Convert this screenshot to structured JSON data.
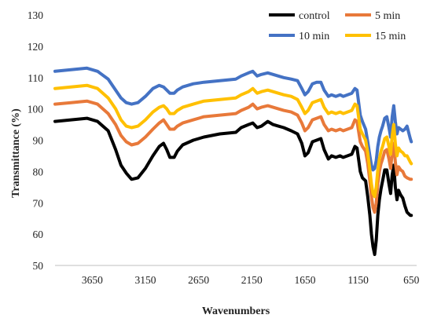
{
  "chart_data": {
    "type": "line",
    "title": "",
    "xlabel": "Wavenumbers",
    "ylabel": "Transmittance  (%)",
    "xlim": [
      4000,
      600
    ],
    "x_reversed": true,
    "ylim": [
      50,
      130
    ],
    "grid": false,
    "legend_position": "top-right",
    "x_ticks": [
      3650,
      3150,
      2650,
      2150,
      1650,
      1150,
      650
    ],
    "x_tick_labels": [
      "3650",
      "3150",
      "2650",
      "2150",
      "1650",
      "1150",
      "650"
    ],
    "y_ticks": [
      50,
      60,
      70,
      80,
      90,
      100,
      110,
      120,
      130
    ],
    "y_tick_labels": [
      "50",
      "60",
      "70",
      "80",
      "90",
      "100",
      "110",
      "120",
      "130"
    ],
    "series": [
      {
        "name": "control",
        "color": "#000000",
        "points": [
          [
            4000,
            96
          ],
          [
            3850,
            96.5
          ],
          [
            3700,
            97
          ],
          [
            3600,
            96
          ],
          [
            3500,
            93
          ],
          [
            3430,
            87
          ],
          [
            3380,
            82
          ],
          [
            3330,
            79.5
          ],
          [
            3280,
            77.5
          ],
          [
            3220,
            78
          ],
          [
            3150,
            81
          ],
          [
            3080,
            85
          ],
          [
            3020,
            88
          ],
          [
            2980,
            89
          ],
          [
            2950,
            87
          ],
          [
            2920,
            84.5
          ],
          [
            2880,
            84.5
          ],
          [
            2850,
            86.5
          ],
          [
            2800,
            88.5
          ],
          [
            2700,
            90
          ],
          [
            2600,
            91
          ],
          [
            2450,
            92
          ],
          [
            2300,
            92.5
          ],
          [
            2250,
            94
          ],
          [
            2180,
            95
          ],
          [
            2140,
            95.5
          ],
          [
            2100,
            94
          ],
          [
            2060,
            94.5
          ],
          [
            2000,
            96
          ],
          [
            1950,
            95
          ],
          [
            1900,
            94.5
          ],
          [
            1850,
            94
          ],
          [
            1780,
            93
          ],
          [
            1720,
            92
          ],
          [
            1680,
            89
          ],
          [
            1650,
            85
          ],
          [
            1620,
            86
          ],
          [
            1580,
            89.5
          ],
          [
            1540,
            90
          ],
          [
            1500,
            90.5
          ],
          [
            1470,
            87
          ],
          [
            1430,
            84
          ],
          [
            1400,
            85
          ],
          [
            1360,
            84.5
          ],
          [
            1320,
            85
          ],
          [
            1290,
            84.5
          ],
          [
            1250,
            85
          ],
          [
            1210,
            85.5
          ],
          [
            1180,
            88
          ],
          [
            1160,
            87.5
          ],
          [
            1130,
            80
          ],
          [
            1110,
            78
          ],
          [
            1080,
            77
          ],
          [
            1060,
            72
          ],
          [
            1040,
            66
          ],
          [
            1025,
            60
          ],
          [
            1010,
            56
          ],
          [
            995,
            53.5
          ],
          [
            980,
            58
          ],
          [
            965,
            66
          ],
          [
            950,
            71
          ],
          [
            935,
            74.5
          ],
          [
            920,
            77
          ],
          [
            900,
            80.5
          ],
          [
            880,
            80.5
          ],
          [
            860,
            76
          ],
          [
            845,
            73
          ],
          [
            830,
            79
          ],
          [
            815,
            82
          ],
          [
            800,
            75
          ],
          [
            785,
            71
          ],
          [
            770,
            74
          ],
          [
            750,
            72.5
          ],
          [
            730,
            71.5
          ],
          [
            710,
            69
          ],
          [
            690,
            67
          ],
          [
            660,
            66
          ],
          [
            650,
            66
          ]
        ]
      },
      {
        "name": "5 min",
        "color": "#E8793A",
        "points": [
          [
            4000,
            101.5
          ],
          [
            3850,
            102
          ],
          [
            3700,
            102.5
          ],
          [
            3600,
            101.5
          ],
          [
            3500,
            98.5
          ],
          [
            3430,
            95
          ],
          [
            3380,
            91.5
          ],
          [
            3330,
            89.5
          ],
          [
            3280,
            88.5
          ],
          [
            3220,
            89
          ],
          [
            3150,
            91
          ],
          [
            3080,
            93.5
          ],
          [
            3020,
            95.5
          ],
          [
            2980,
            96.5
          ],
          [
            2950,
            95
          ],
          [
            2920,
            93.5
          ],
          [
            2880,
            93.5
          ],
          [
            2850,
            94.5
          ],
          [
            2800,
            95.5
          ],
          [
            2700,
            96.5
          ],
          [
            2600,
            97.5
          ],
          [
            2450,
            98
          ],
          [
            2300,
            98.5
          ],
          [
            2250,
            99.5
          ],
          [
            2180,
            100.5
          ],
          [
            2140,
            101.5
          ],
          [
            2100,
            100
          ],
          [
            2060,
            100.5
          ],
          [
            2000,
            101
          ],
          [
            1950,
            100.5
          ],
          [
            1900,
            100
          ],
          [
            1850,
            99.5
          ],
          [
            1780,
            99
          ],
          [
            1720,
            98
          ],
          [
            1680,
            95.5
          ],
          [
            1650,
            93
          ],
          [
            1620,
            94
          ],
          [
            1580,
            96.5
          ],
          [
            1540,
            97
          ],
          [
            1500,
            97.5
          ],
          [
            1470,
            95
          ],
          [
            1430,
            93
          ],
          [
            1400,
            93.5
          ],
          [
            1360,
            93
          ],
          [
            1320,
            93.5
          ],
          [
            1290,
            93
          ],
          [
            1250,
            93.5
          ],
          [
            1210,
            94
          ],
          [
            1180,
            96.5
          ],
          [
            1160,
            96
          ],
          [
            1130,
            89.5
          ],
          [
            1110,
            88
          ],
          [
            1080,
            86.5
          ],
          [
            1060,
            82.5
          ],
          [
            1040,
            77
          ],
          [
            1025,
            72
          ],
          [
            1010,
            68.5
          ],
          [
            995,
            67
          ],
          [
            980,
            70
          ],
          [
            965,
            76
          ],
          [
            950,
            80
          ],
          [
            935,
            82.5
          ],
          [
            920,
            84
          ],
          [
            900,
            86.5
          ],
          [
            880,
            87
          ],
          [
            860,
            84
          ],
          [
            845,
            81
          ],
          [
            830,
            86
          ],
          [
            815,
            89
          ],
          [
            800,
            83
          ],
          [
            785,
            79
          ],
          [
            770,
            81.5
          ],
          [
            750,
            80.5
          ],
          [
            730,
            80
          ],
          [
            710,
            78.5
          ],
          [
            690,
            78
          ],
          [
            660,
            77.5
          ],
          [
            650,
            77.5
          ]
        ]
      },
      {
        "name": "10 min",
        "color": "#4472C4",
        "points": [
          [
            4000,
            112
          ],
          [
            3850,
            112.5
          ],
          [
            3700,
            113
          ],
          [
            3600,
            112
          ],
          [
            3500,
            109.5
          ],
          [
            3430,
            106
          ],
          [
            3380,
            103.5
          ],
          [
            3330,
            102
          ],
          [
            3280,
            101.5
          ],
          [
            3220,
            102
          ],
          [
            3150,
            104
          ],
          [
            3080,
            106.5
          ],
          [
            3020,
            107.5
          ],
          [
            2980,
            107
          ],
          [
            2950,
            106
          ],
          [
            2920,
            105
          ],
          [
            2880,
            105
          ],
          [
            2850,
            106
          ],
          [
            2800,
            107
          ],
          [
            2700,
            108
          ],
          [
            2600,
            108.5
          ],
          [
            2450,
            109
          ],
          [
            2300,
            109.5
          ],
          [
            2250,
            110.5
          ],
          [
            2180,
            111.5
          ],
          [
            2140,
            112
          ],
          [
            2100,
            110.5
          ],
          [
            2060,
            111
          ],
          [
            2000,
            111.5
          ],
          [
            1950,
            111
          ],
          [
            1900,
            110.5
          ],
          [
            1850,
            110
          ],
          [
            1780,
            109.5
          ],
          [
            1720,
            109
          ],
          [
            1680,
            106.5
          ],
          [
            1650,
            104.5
          ],
          [
            1620,
            105.5
          ],
          [
            1580,
            108
          ],
          [
            1540,
            108.5
          ],
          [
            1500,
            108.5
          ],
          [
            1470,
            106
          ],
          [
            1430,
            104
          ],
          [
            1400,
            104.5
          ],
          [
            1360,
            104
          ],
          [
            1320,
            104.5
          ],
          [
            1290,
            104
          ],
          [
            1250,
            104.5
          ],
          [
            1210,
            105
          ],
          [
            1180,
            106.5
          ],
          [
            1160,
            106
          ],
          [
            1130,
            98
          ],
          [
            1110,
            96
          ],
          [
            1080,
            93.5
          ],
          [
            1060,
            89.5
          ],
          [
            1040,
            85
          ],
          [
            1025,
            82
          ],
          [
            1010,
            80.5
          ],
          [
            995,
            81
          ],
          [
            980,
            83.5
          ],
          [
            965,
            88
          ],
          [
            950,
            91
          ],
          [
            935,
            93
          ],
          [
            920,
            94.5
          ],
          [
            900,
            97
          ],
          [
            880,
            97.5
          ],
          [
            860,
            94
          ],
          [
            845,
            91
          ],
          [
            830,
            97.5
          ],
          [
            815,
            101
          ],
          [
            800,
            96
          ],
          [
            785,
            92
          ],
          [
            770,
            94
          ],
          [
            750,
            93.5
          ],
          [
            730,
            93
          ],
          [
            710,
            93.5
          ],
          [
            690,
            94.5
          ],
          [
            660,
            90.5
          ],
          [
            650,
            89.5
          ]
        ]
      },
      {
        "name": "15 min",
        "color": "#FFC000",
        "points": [
          [
            4000,
            106.5
          ],
          [
            3850,
            107
          ],
          [
            3700,
            107.5
          ],
          [
            3600,
            106.5
          ],
          [
            3500,
            103.5
          ],
          [
            3430,
            100
          ],
          [
            3380,
            96.5
          ],
          [
            3330,
            94.5
          ],
          [
            3280,
            94
          ],
          [
            3220,
            94.5
          ],
          [
            3150,
            96.5
          ],
          [
            3080,
            99
          ],
          [
            3020,
            100.5
          ],
          [
            2980,
            101
          ],
          [
            2950,
            100
          ],
          [
            2920,
            98.5
          ],
          [
            2880,
            98.5
          ],
          [
            2850,
            99.5
          ],
          [
            2800,
            100.5
          ],
          [
            2700,
            101.5
          ],
          [
            2600,
            102.5
          ],
          [
            2450,
            103
          ],
          [
            2300,
            103.5
          ],
          [
            2250,
            104.5
          ],
          [
            2180,
            105.5
          ],
          [
            2140,
            106.5
          ],
          [
            2100,
            105
          ],
          [
            2060,
            105.5
          ],
          [
            2000,
            106
          ],
          [
            1950,
            105.5
          ],
          [
            1900,
            105
          ],
          [
            1850,
            104.5
          ],
          [
            1780,
            104
          ],
          [
            1720,
            103
          ],
          [
            1680,
            100.5
          ],
          [
            1650,
            98.5
          ],
          [
            1620,
            99.5
          ],
          [
            1580,
            102
          ],
          [
            1540,
            102.5
          ],
          [
            1500,
            103
          ],
          [
            1470,
            100.5
          ],
          [
            1430,
            98.5
          ],
          [
            1400,
            99
          ],
          [
            1360,
            98.5
          ],
          [
            1320,
            99
          ],
          [
            1290,
            98.5
          ],
          [
            1250,
            99
          ],
          [
            1210,
            99.5
          ],
          [
            1180,
            101.5
          ],
          [
            1160,
            101
          ],
          [
            1130,
            93.5
          ],
          [
            1110,
            92
          ],
          [
            1080,
            90
          ],
          [
            1060,
            86
          ],
          [
            1040,
            80.5
          ],
          [
            1025,
            76
          ],
          [
            1010,
            73
          ],
          [
            995,
            72
          ],
          [
            980,
            75
          ],
          [
            965,
            80.5
          ],
          [
            950,
            84
          ],
          [
            935,
            86.5
          ],
          [
            920,
            88
          ],
          [
            900,
            90.5
          ],
          [
            880,
            91
          ],
          [
            860,
            88
          ],
          [
            845,
            85.5
          ],
          [
            830,
            91.5
          ],
          [
            815,
            95
          ],
          [
            800,
            89
          ],
          [
            785,
            85
          ],
          [
            770,
            87.5
          ],
          [
            750,
            86.5
          ],
          [
            730,
            86
          ],
          [
            710,
            85
          ],
          [
            690,
            85
          ],
          [
            660,
            83
          ],
          [
            650,
            82.5
          ]
        ]
      }
    ]
  }
}
